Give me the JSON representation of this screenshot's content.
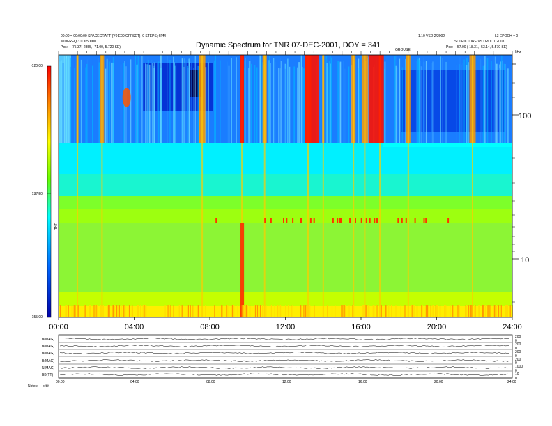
{
  "header": {
    "title": "Dynamic Spectrum for TNR 07-DEC-2001, DOY = 341",
    "left_line1": "00:00 = 00:00:00 SPACECRAFT (Y0 E00 OFFSET), 0 STEPS; 6PM",
    "left_line2": "MIDFREQ 3.0 = 50000",
    "left_line3_label": "Pos:",
    "left_line3_value": "75.37(-2355, -71.00, 5.720 SE)",
    "right_line1": "1.10 VSD 2/2002",
    "right_line1b": "L3 EPOCH = 0",
    "right_line2": "SOLPICTURE VS DPOCT 2003",
    "right_line3_label": "Pos:",
    "right_line3_value": "57.00 (-18.31, -53.14, 5.570 SE)",
    "mid_marker": "GROUSE",
    "khz_unit": "kHz"
  },
  "colorbar": {
    "top_label": "-120.00",
    "mid_label": "-137.50",
    "bottom_label": "-155.00",
    "axis_label": "TNR"
  },
  "bottom_panel": {
    "row_labels": [
      "B(MAG)",
      "B(MAG)",
      "B(MAG)",
      "B(MAG)",
      "N(MAG)",
      "BB(TT)"
    ],
    "footer_left": "Notes:",
    "footer_left2": "orbit",
    "x_labels_small": [
      "00:00",
      "04:00",
      "08:00",
      "12:00",
      "16:00",
      "20:00",
      "24:00"
    ],
    "right_scale_labels": [
      "200",
      "0",
      "200",
      "0",
      "200",
      "0",
      "200",
      "0",
      "1000",
      "0",
      "10",
      "0"
    ]
  },
  "chart_data": {
    "type": "heatmap",
    "title": "Dynamic Spectrum for TNR 07-DEC-2001, DOY = 341",
    "xlabel": "",
    "ylabel": "kHz",
    "x_tick_labels": [
      "00:00",
      "04:00",
      "08:00",
      "12:00",
      "16:00",
      "20:00",
      "24:00"
    ],
    "xlim": [
      0,
      24
    ],
    "y_tick_labels": [
      "100",
      "10"
    ],
    "ylim_khz": [
      4,
      200
    ],
    "y_scale": "log",
    "colorbar_range": [
      -155.0,
      -120.0
    ],
    "colormap": [
      "#0000aa",
      "#0044ff",
      "#00aaff",
      "#00ffff",
      "#66ff66",
      "#aaff00",
      "#ffff00",
      "#ff8800",
      "#ff0000"
    ],
    "bright_emission_times_h": [
      1.0,
      2.3,
      7.6,
      9.7,
      10.9,
      13.2,
      14.0,
      15.6,
      16.2,
      17.0,
      18.5,
      21.9
    ],
    "grid": false
  }
}
